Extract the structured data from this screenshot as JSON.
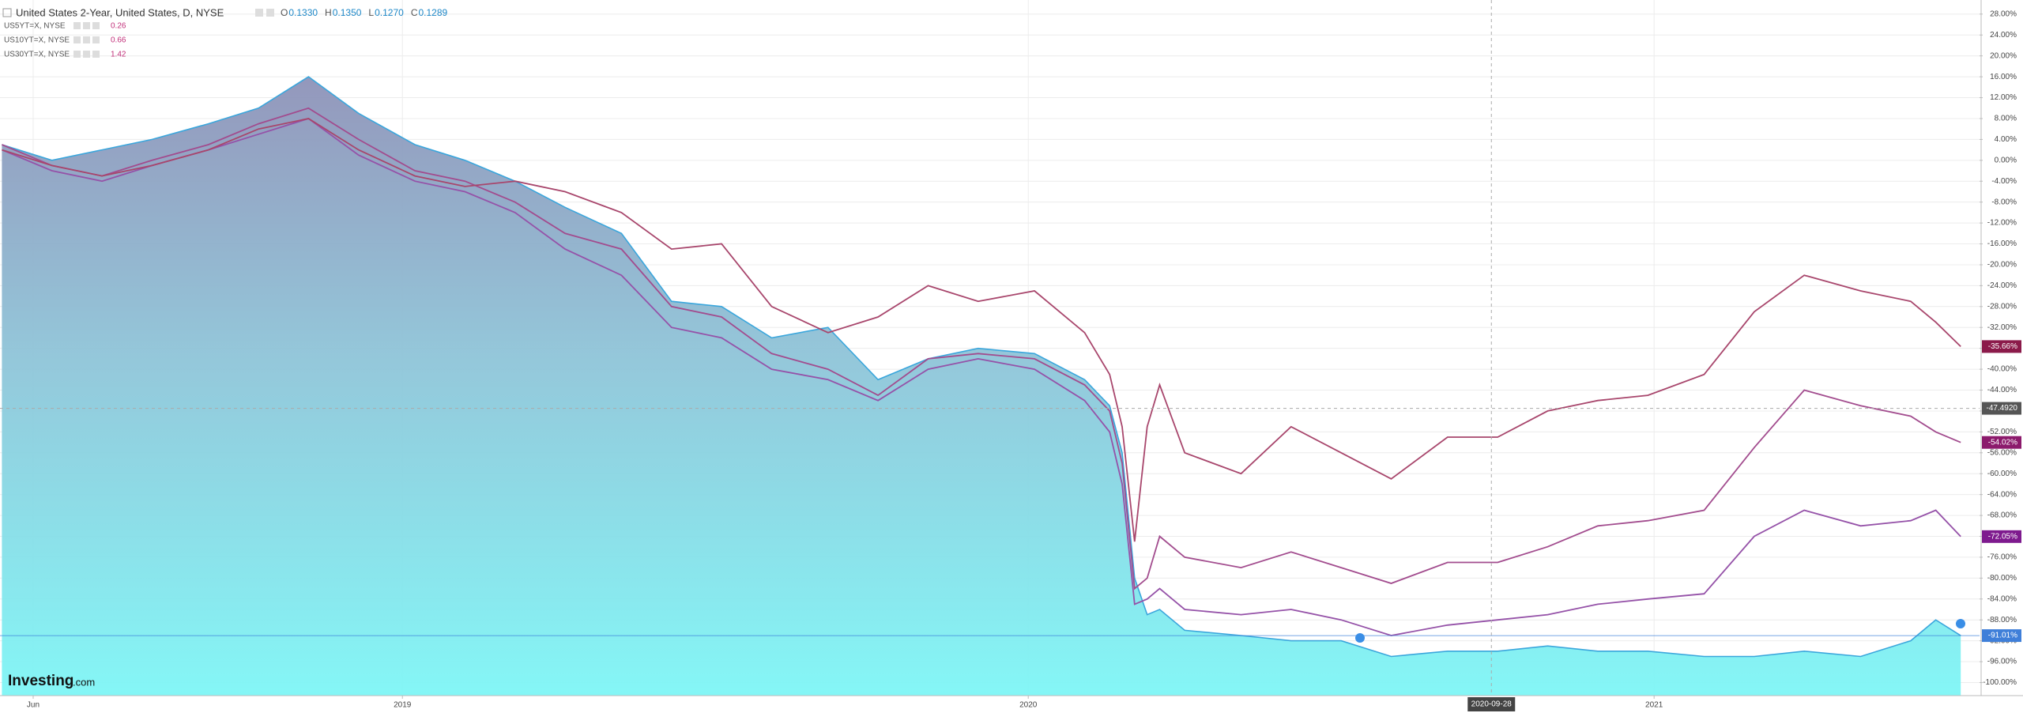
{
  "chart_data": {
    "type": "line",
    "title": "United States 2-Year, United States, D, NYSE",
    "ohlc": [
      {
        "label": "O",
        "value": "0.1330"
      },
      {
        "label": "H",
        "value": "0.1350"
      },
      {
        "label": "L",
        "value": "0.1270"
      },
      {
        "label": "C",
        "value": "0.1289"
      }
    ],
    "logo": [
      "Investing",
      ".com"
    ],
    "x": [
      2018.36,
      2018.44,
      2018.52,
      2018.6,
      2018.69,
      2018.77,
      2018.85,
      2018.93,
      2019.02,
      2019.1,
      2019.18,
      2019.26,
      2019.35,
      2019.43,
      2019.51,
      2019.59,
      2019.68,
      2019.76,
      2019.84,
      2019.92,
      2020.01,
      2020.09,
      2020.13,
      2020.15,
      2020.17,
      2020.19,
      2020.21,
      2020.25,
      2020.34,
      2020.42,
      2020.5,
      2020.58,
      2020.67,
      2020.75,
      2020.83,
      2020.91,
      2020.99,
      2021.08,
      2021.16,
      2021.24,
      2021.33,
      2021.41,
      2021.45,
      2021.49
    ],
    "series": [
      {
        "name": "United States 2-Year, United States, D, NYSE",
        "style": "area",
        "color": "#3aa6dc",
        "label_color": "#3f7fd9",
        "values": [
          3,
          0,
          2,
          4,
          7,
          10,
          16,
          9,
          3,
          0,
          -4,
          -9,
          -14,
          -27,
          -28,
          -34,
          -32,
          -42,
          -38,
          -36,
          -37,
          -42,
          -47,
          -56,
          -80,
          -87,
          -86,
          -90,
          -91,
          -92,
          -92,
          -95,
          -94,
          -94,
          -93,
          -94,
          -94,
          -95,
          -95,
          -94,
          -95,
          -92,
          -88,
          -91.01
        ],
        "value_labels": {
          "43": "-91.01%"
        }
      },
      {
        "name": "US5YT=X, NYSE",
        "last": 0.26,
        "style": "line",
        "color": "#9552a8",
        "label_color": "#7e1a8e",
        "values": [
          2,
          -2,
          -4,
          -1,
          2,
          5,
          8,
          1,
          -4,
          -6,
          -10,
          -17,
          -22,
          -32,
          -34,
          -40,
          -42,
          -46,
          -40,
          -38,
          -40,
          -46,
          -52,
          -62,
          -85,
          -84,
          -82,
          -86,
          -87,
          -86,
          -88,
          -91,
          -89,
          -88,
          -87,
          -85,
          -84,
          -83,
          -72,
          -67,
          -70,
          -69,
          -67,
          -72.05
        ],
        "value_labels": {
          "43": "-72.05%"
        }
      },
      {
        "name": "US10YT=X, NYSE",
        "last": 0.66,
        "style": "line",
        "color": "#a24c8e",
        "label_color": "#8c1a6c",
        "values": [
          3,
          -1,
          -3,
          0,
          3,
          7,
          10,
          4,
          -2,
          -4,
          -8,
          -14,
          -17,
          -28,
          -30,
          -37,
          -40,
          -45,
          -38,
          -37,
          -38,
          -43,
          -48,
          -58,
          -82,
          -80,
          -72,
          -76,
          -78,
          -75,
          -78,
          -81,
          -77,
          -77,
          -74,
          -70,
          -69,
          -67,
          -55,
          -44,
          -47,
          -49,
          -52,
          -54.02
        ],
        "value_labels": {
          "43": "-54.02%"
        }
      },
      {
        "name": "US30YT=X, NYSE",
        "last": 1.42,
        "style": "line",
        "color": "#a8466c",
        "label_color": "#8b1a4a",
        "values": [
          2,
          -1,
          -3,
          -1,
          2,
          6,
          8,
          2,
          -3,
          -5,
          -4,
          -6,
          -10,
          -17,
          -16,
          -28,
          -33,
          -30,
          -24,
          -27,
          -25,
          -33,
          -41,
          -51,
          -73,
          -51,
          -43,
          -56,
          -60,
          -51,
          -56,
          -61,
          -53,
          -53,
          -48,
          -46,
          -45,
          -41,
          -29,
          -22,
          -25,
          -27,
          -31,
          -35.66
        ],
        "value_labels": {
          "43": "-35.66%"
        }
      }
    ],
    "xlim": [
      2018.357,
      2021.52
    ],
    "xticks": [
      {
        "value": 2018.41,
        "label": "Jun"
      },
      2019,
      2020,
      2021
    ],
    "ylim": [
      -102.5,
      30.7
    ],
    "yticks": [
      {
        "value": 28,
        "label": "28.00%"
      },
      {
        "value": 24,
        "label": "24.00%"
      },
      {
        "value": 20,
        "label": "20.00%"
      },
      {
        "value": 16,
        "label": "16.00%"
      },
      {
        "value": 12,
        "label": "12.00%"
      },
      {
        "value": 8,
        "label": "8.00%"
      },
      {
        "value": 4,
        "label": "4.00%"
      },
      {
        "value": 0,
        "label": "0.00%"
      },
      {
        "value": -4,
        "label": "-4.00%"
      },
      {
        "value": -8,
        "label": "-8.00%"
      },
      {
        "value": -12,
        "label": "-12.00%"
      },
      {
        "value": -16,
        "label": "-16.00%"
      },
      {
        "value": -20,
        "label": "-20.00%"
      },
      {
        "value": -24,
        "label": "-24.00%"
      },
      {
        "value": -28,
        "label": "-28.00%"
      },
      {
        "value": -32,
        "label": "-32.00%"
      },
      {
        "value": -36,
        "label": "-36.00%"
      },
      {
        "value": -40,
        "label": "-40.00%"
      },
      {
        "value": -44,
        "label": "-44.00%"
      },
      {
        "value": -48,
        "label": "-48.00%"
      },
      {
        "value": -52,
        "label": "-52.00%"
      },
      {
        "value": -56,
        "label": "-56.00%"
      },
      {
        "value": -60,
        "label": "-60.00%"
      },
      {
        "value": -64,
        "label": "-64.00%"
      },
      {
        "value": -68,
        "label": "-68.00%"
      },
      {
        "value": -72,
        "label": "-72.00%"
      },
      {
        "value": -76,
        "label": "-76.00%"
      },
      {
        "value": -80,
        "label": "-80.00%"
      },
      {
        "value": -84,
        "label": "-84.00%"
      },
      {
        "value": -88,
        "label": "-88.00%"
      },
      {
        "value": -92,
        "label": "-92.00%"
      },
      {
        "value": -96,
        "label": "-96.00%"
      },
      {
        "value": -100,
        "label": "-100.00%"
      }
    ],
    "grid": true,
    "crosshair": {
      "x": 2020.74,
      "x_label": "2020-09-28",
      "y": -47.492,
      "y_label": "-47.4920"
    }
  }
}
